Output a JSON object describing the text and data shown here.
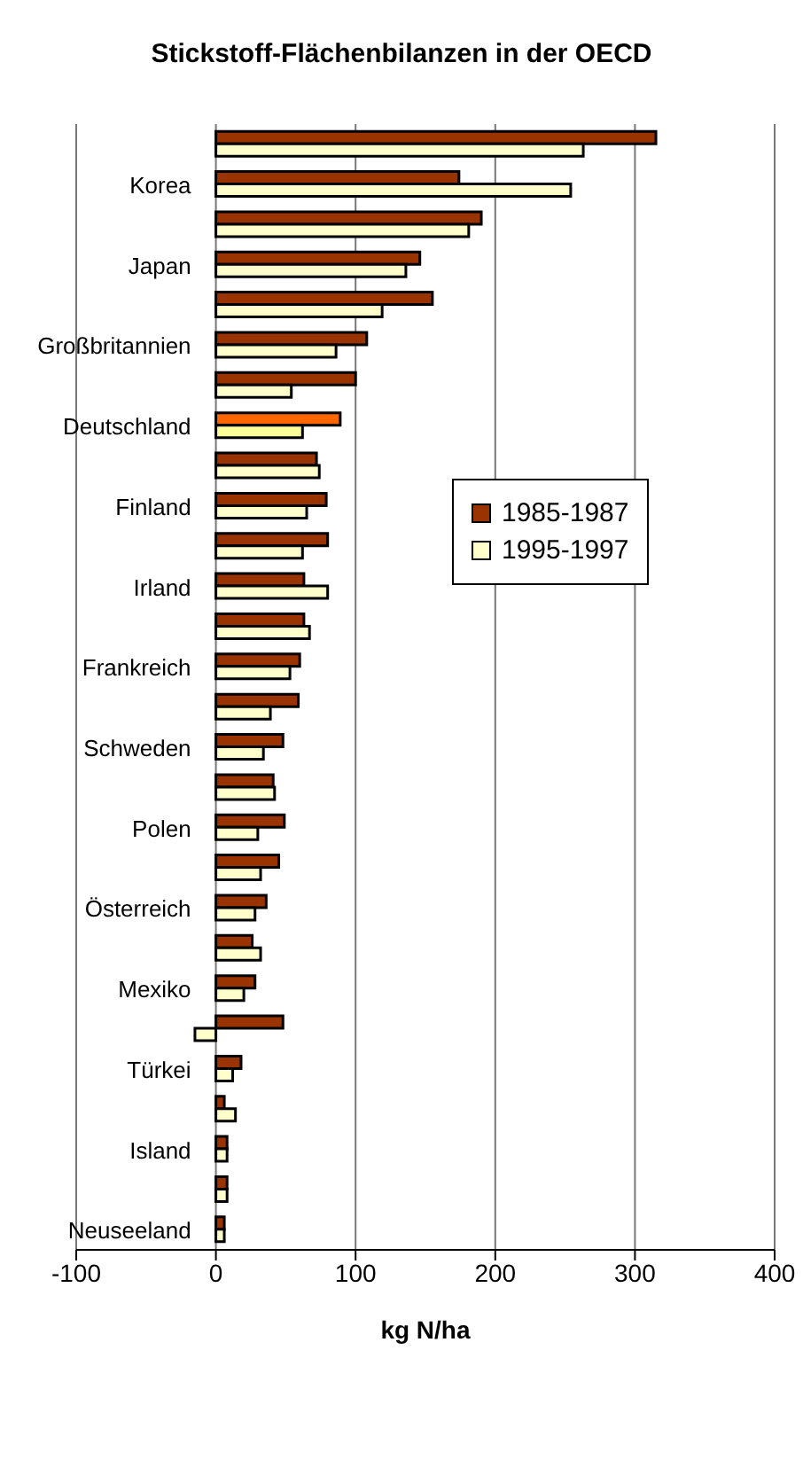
{
  "chart_data": {
    "type": "bar",
    "orientation": "horizontal",
    "title": "Stickstoff-Flächenbilanzen in der OECD",
    "xlabel": "kg N/ha",
    "categories": [
      null,
      "Korea",
      null,
      "Japan",
      null,
      "Großbritannien",
      null,
      "Deutschland",
      null,
      "Finland",
      null,
      "Irland",
      null,
      "Frankreich",
      null,
      "Schweden",
      null,
      "Polen",
      null,
      "Österreich",
      null,
      "Mexiko",
      null,
      "Türkei",
      null,
      "Island",
      null,
      "Neuseeland"
    ],
    "series": [
      {
        "name": "1985-1987",
        "color": "#993300",
        "colors": [
          "#993300",
          "#993300",
          "#993300",
          "#993300",
          "#993300",
          "#993300",
          "#993300",
          "#ff6600",
          "#993300",
          "#993300",
          "#993300",
          "#993300",
          "#993300",
          "#993300",
          "#993300",
          "#993300",
          "#993300",
          "#993300",
          "#993300",
          "#993300",
          "#993300",
          "#993300",
          "#993300",
          "#993300",
          "#993300",
          "#993300",
          "#993300",
          "#993300"
        ],
        "values": [
          315,
          174,
          190,
          146,
          155,
          108,
          100,
          89,
          72,
          79,
          80,
          63,
          63,
          60,
          59,
          48,
          41,
          49,
          45,
          36,
          26,
          28,
          48,
          18,
          6,
          8,
          8,
          6
        ]
      },
      {
        "name": "1995-1997",
        "color": "#ffffcc",
        "colors": [
          "#ffffcc",
          "#ffffcc",
          "#ffffcc",
          "#ffffcc",
          "#ffffcc",
          "#ffffcc",
          "#ffffcc",
          "#ffff99",
          "#ffffcc",
          "#ffffcc",
          "#ffffcc",
          "#ffffcc",
          "#ffffcc",
          "#ffffcc",
          "#ffffcc",
          "#ffffcc",
          "#ffffcc",
          "#ffffcc",
          "#ffffcc",
          "#ffffcc",
          "#ffffcc",
          "#ffffcc",
          "#ffffcc",
          "#ffffcc",
          "#ffffcc",
          "#ffffcc",
          "#ffffcc",
          "#ffffcc"
        ],
        "values": [
          263,
          254,
          181,
          136,
          119,
          86,
          54,
          62,
          74,
          65,
          62,
          80,
          67,
          53,
          39,
          34,
          42,
          30,
          32,
          28,
          32,
          20,
          -15,
          12,
          14,
          8,
          8,
          6
        ]
      }
    ],
    "xlim": [
      -100,
      400
    ],
    "xticks": [
      -100,
      0,
      100,
      200,
      300,
      400
    ],
    "grid": "x",
    "legend": "right"
  }
}
